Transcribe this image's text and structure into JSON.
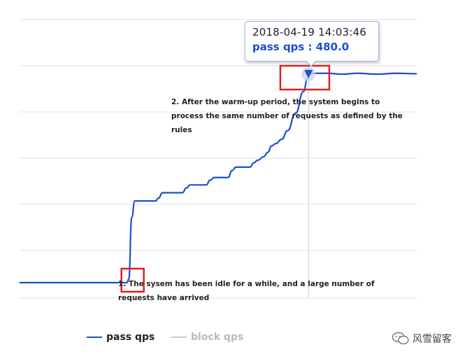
{
  "chart_data": {
    "type": "line",
    "title": "",
    "xlabel": "",
    "ylabel": "",
    "ylim": [
      0,
      600
    ],
    "grid": true,
    "legend_position": "bottom-left",
    "series": [
      {
        "name": "pass qps",
        "color": "#1b4fcf",
        "points": [
          [
            0,
            0
          ],
          [
            100,
            0
          ],
          [
            108,
            0
          ],
          [
            110,
            8
          ],
          [
            113,
            150
          ],
          [
            116,
            188
          ],
          [
            137,
            188
          ],
          [
            140,
            195
          ],
          [
            144,
            207
          ],
          [
            164,
            207
          ],
          [
            168,
            218
          ],
          [
            172,
            225
          ],
          [
            188,
            225
          ],
          [
            192,
            236
          ],
          [
            196,
            242
          ],
          [
            210,
            242
          ],
          [
            214,
            258
          ],
          [
            218,
            266
          ],
          [
            232,
            266
          ],
          [
            236,
            276
          ],
          [
            240,
            282
          ],
          [
            246,
            290
          ],
          [
            250,
            300
          ],
          [
            254,
            315
          ],
          [
            258,
            320
          ],
          [
            264,
            330
          ],
          [
            270,
            350
          ],
          [
            278,
            390
          ],
          [
            286,
            440
          ],
          [
            290,
            470
          ],
          [
            292,
            480
          ],
          [
            295,
            482
          ],
          [
            310,
            482
          ],
          [
            325,
            480
          ],
          [
            340,
            482
          ],
          [
            360,
            480
          ],
          [
            380,
            482
          ],
          [
            400,
            481
          ]
        ]
      },
      {
        "name": "block qps",
        "color": "#cccccc",
        "points": []
      }
    ],
    "highlight": {
      "x": 291,
      "y": 480,
      "timestamp": "2018-04-19 14:03:46",
      "label": "pass qps : 480.0"
    }
  },
  "tooltip": {
    "timestamp": "2018-04-19 14:03:46",
    "value_text": "pass qps : 480.0"
  },
  "annotations": {
    "a1": "1. The sysem has been idle for a while, and a large number of requests have arrived",
    "a2": "2. After the warm-up period, the system begins to process the same number of requests as defined by the rules"
  },
  "legend": {
    "pass": "pass qps",
    "block": "block qps"
  },
  "watermark": {
    "text": "风雪留客",
    "icon": "wechat-icon"
  },
  "colors": {
    "line": "#1b4fcf",
    "grid": "#e0e0e0",
    "highlight_box": "#e02020",
    "block": "#cccccc"
  }
}
